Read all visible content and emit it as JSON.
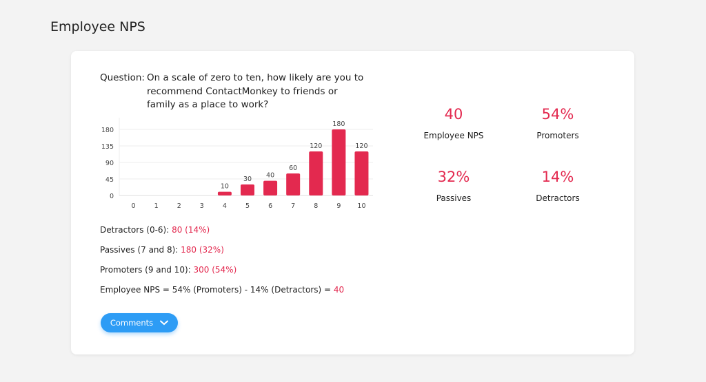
{
  "page": {
    "title": "Employee NPS"
  },
  "question": {
    "label": "Question:",
    "text": "On a scale of zero to ten, how likely are you to recommend ContactMonkey to friends or family as a place to work?"
  },
  "chart_data": {
    "type": "bar",
    "categories": [
      "0",
      "1",
      "2",
      "3",
      "4",
      "5",
      "6",
      "7",
      "8",
      "9",
      "10"
    ],
    "values": [
      0,
      0,
      0,
      0,
      10,
      30,
      40,
      60,
      120,
      180,
      120
    ],
    "data_labels": [
      "",
      "",
      "",
      "",
      "10",
      "30",
      "40",
      "60",
      "120",
      "180",
      "120"
    ],
    "yticks": [
      0,
      45,
      90,
      135,
      180
    ],
    "ylim": [
      0,
      190
    ],
    "grid": true,
    "bar_color": "#e3294f"
  },
  "kpis": [
    {
      "value": "40",
      "label": "Employee NPS"
    },
    {
      "value": "54%",
      "label": "Promoters"
    },
    {
      "value": "32%",
      "label": "Passives"
    },
    {
      "value": "14%",
      "label": "Detractors"
    }
  ],
  "stats": {
    "detractors": {
      "label": "Detractors (0-6): ",
      "value": "80 (14%)"
    },
    "passives": {
      "label": "Passives (7 and 8): ",
      "value": "180 (32%)"
    },
    "promoters": {
      "label": "Promoters (9 and 10): ",
      "value": "300 (54%)"
    },
    "nps": {
      "label": "Employee NPS",
      "formula": " = 54% (Promoters) - 14% (Detractors) = ",
      "value": "40"
    }
  },
  "comments_button": {
    "label": "Comments",
    "icon": "chevron-down-icon"
  },
  "colors": {
    "accent": "#e3294f",
    "button": "#2d9cf5"
  }
}
